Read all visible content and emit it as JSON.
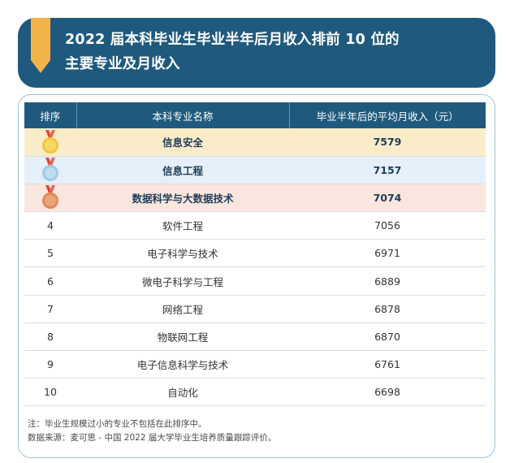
{
  "title": {
    "line1": "2022 届本科毕业生毕业半年后月收入排前 10 位的",
    "line2": "主要专业及月收入"
  },
  "table": {
    "headers": [
      "排序",
      "本科专业名称",
      "毕业半年后的平均月收入（元）"
    ],
    "rows": [
      {
        "rank": "",
        "medal": "gold-medal",
        "major": "信息安全",
        "income": "7579"
      },
      {
        "rank": "",
        "medal": "silver-medal",
        "major": "信息工程",
        "income": "7157"
      },
      {
        "rank": "",
        "medal": "bronze-medal",
        "major": "数据科学与大数据技术",
        "income": "7074"
      },
      {
        "rank": "4",
        "major": "软件工程",
        "income": "7056"
      },
      {
        "rank": "5",
        "major": "电子科学与技术",
        "income": "6971"
      },
      {
        "rank": "6",
        "major": "微电子科学与工程",
        "income": "6889"
      },
      {
        "rank": "7",
        "major": "网络工程",
        "income": "6878"
      },
      {
        "rank": "8",
        "major": "物联网工程",
        "income": "6870"
      },
      {
        "rank": "9",
        "major": "电子信息科学与技术",
        "income": "6761"
      },
      {
        "rank": "10",
        "major": "自动化",
        "income": "6698"
      }
    ]
  },
  "notes": {
    "note": "注：毕业生规模过小的专业不包括在此排序中。",
    "source": "数据来源：麦可思 - 中国 2022 届大学毕业生培养质量跟踪评价。"
  },
  "colors": {
    "header_bg": "#1f5a7e",
    "gold_row": "#fbecc9",
    "silver_row": "#e6f0fa",
    "bronze_row": "#fbe6df"
  }
}
